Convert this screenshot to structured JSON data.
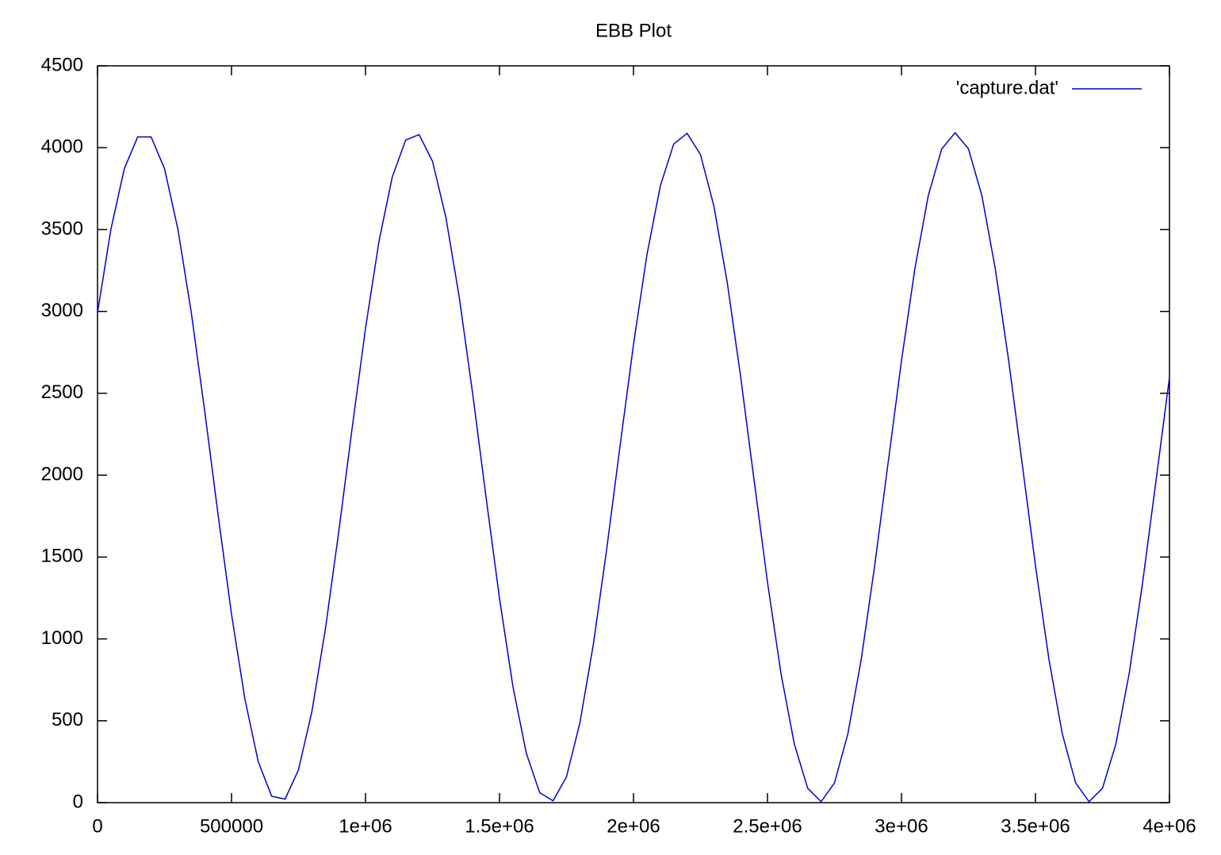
{
  "chart_data": {
    "type": "line",
    "title": "EBB Plot",
    "x": [
      0,
      50000,
      100000,
      150000,
      200000,
      250000,
      300000,
      350000,
      400000,
      450000,
      500000,
      550000,
      600000,
      650000,
      700000,
      750000,
      800000,
      850000,
      900000,
      950000,
      1000000,
      1050000,
      1100000,
      1150000,
      1200000,
      1250000,
      1300000,
      1350000,
      1400000,
      1450000,
      1500000,
      1550000,
      1600000,
      1650000,
      1700000,
      1750000,
      1800000,
      1850000,
      1900000,
      1950000,
      2000000,
      2050000,
      2100000,
      2150000,
      2200000,
      2250000,
      2300000,
      2350000,
      2400000,
      2450000,
      2500000,
      2550000,
      2600000,
      2650000,
      2700000,
      2750000,
      2800000,
      2850000,
      2900000,
      2950000,
      3000000,
      3050000,
      3100000,
      3150000,
      3200000,
      3250000,
      3300000,
      3350000,
      3400000,
      3450000,
      3500000,
      3550000,
      3600000,
      3650000,
      3700000,
      3750000,
      3800000,
      3850000,
      3900000,
      3950000,
      4000000
    ],
    "series": [
      {
        "name": "'capture.dat'",
        "color": "#0000cc",
        "values": [
          2992,
          3502,
          3872,
          4066,
          4066,
          3872,
          3502,
          2992,
          2391,
          1757,
          1151,
          632,
          249,
          39,
          22,
          201,
          557,
          1057,
          1653,
          2286,
          2897,
          3426,
          3822,
          4047,
          4080,
          3917,
          3574,
          3085,
          2496,
          1863,
          1248,
          710,
          302,
          61,
          11,
          158,
          487,
          965,
          1548,
          2180,
          2798,
          3345,
          3766,
          4022,
          4088,
          3958,
          3643,
          3175,
          2599,
          1969,
          1347,
          792,
          359,
          88,
          6,
          120,
          421,
          877,
          1447,
          2074,
          2699,
          3261,
          3707,
          3992,
          4091,
          3993,
          3707,
          3262,
          2700,
          2075,
          1447,
          878,
          421,
          120,
          6,
          88,
          358,
          792,
          1346,
          1969,
          2598
        ]
      }
    ],
    "xlim": [
      0,
      4000000
    ],
    "xticks": [
      0,
      500000,
      {
        "value": 1000000,
        "label": "1e+06"
      },
      {
        "value": 1500000,
        "label": "1.5e+06"
      },
      {
        "value": 2000000,
        "label": "2e+06"
      },
      {
        "value": 2500000,
        "label": "2.5e+06"
      },
      {
        "value": 3000000,
        "label": "3e+06"
      },
      {
        "value": 3500000,
        "label": "3.5e+06"
      },
      {
        "value": 4000000,
        "label": "4e+06"
      }
    ],
    "ylim": [
      0,
      4500
    ],
    "yticks": [
      0,
      500,
      1000,
      1500,
      2000,
      2500,
      3000,
      3500,
      4000,
      4500
    ],
    "grid": false,
    "legend": "top-right"
  }
}
